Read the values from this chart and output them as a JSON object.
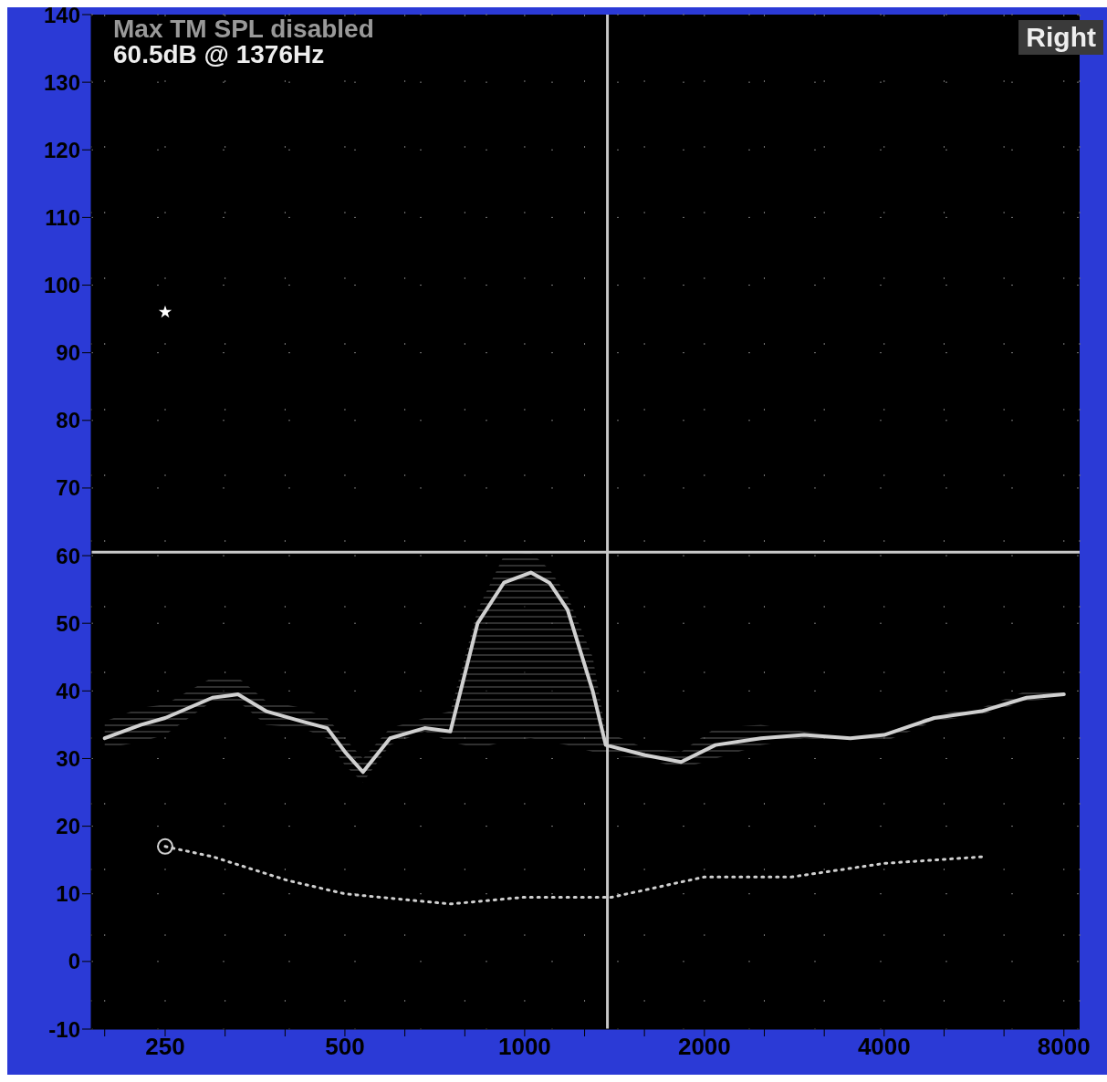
{
  "chart_data": {
    "type": "line",
    "annotations": [
      "Max TM SPL disabled",
      "60.5dB @ 1376Hz",
      "Right"
    ],
    "xlim": [
      188,
      8500
    ],
    "log": "x",
    "xticks": [
      {
        "value": 198,
        "label": null
      },
      250,
      {
        "value": 315,
        "label": null
      },
      {
        "value": 397,
        "label": null
      },
      500,
      {
        "value": 630,
        "label": null
      },
      {
        "value": 794,
        "label": null
      },
      1000,
      {
        "value": 1260,
        "label": null
      },
      {
        "value": 1587,
        "label": null
      },
      2000,
      {
        "value": 2520,
        "label": null
      },
      {
        "value": 3175,
        "label": null
      },
      4000,
      {
        "value": 5040,
        "label": null
      },
      {
        "value": 6350,
        "label": null
      },
      8000
    ],
    "ylim": [
      -10,
      140
    ],
    "yticks": [
      -10,
      0,
      10,
      20,
      30,
      40,
      50,
      60,
      70,
      80,
      90,
      100,
      110,
      120,
      130,
      140
    ],
    "grid": true,
    "ref_lines": [
      {
        "axis": "x",
        "value": 1376,
        "color": "#c8c8c8"
      },
      {
        "axis": "y",
        "value": 60.5,
        "color": "#c8c8c8"
      }
    ],
    "series": [
      {
        "color": "#d0d0d0",
        "marker": "none",
        "line_style": "solid",
        "x": [
          198,
          228,
          250,
          300,
          331,
          369,
          423,
          467,
          500,
          536,
          595,
          680,
          751,
          834,
          923,
          1024,
          1100,
          1180,
          1300,
          1367,
          1591,
          1828,
          2087,
          2487,
          2938,
          3511,
          4000,
          4851,
          5823,
          6929,
          8000
        ],
        "values": [
          33,
          35,
          36,
          39,
          39.5,
          37,
          35.5,
          34.5,
          31,
          28,
          33,
          34.5,
          34,
          50,
          56,
          57.5,
          56,
          52,
          40,
          32,
          30.5,
          29.5,
          32,
          33,
          33.5,
          33,
          33.5,
          36,
          37,
          39,
          39.5
        ],
        "lower": [
          31.5,
          32.5,
          33.5,
          38.5,
          38.5,
          35,
          34.5,
          33,
          29,
          26.5,
          32,
          34,
          32.5,
          31.5,
          32.5,
          33,
          32.5,
          32,
          31,
          30.5,
          30,
          28.5,
          30,
          32,
          33,
          32.5,
          32.5,
          35.5,
          36.5,
          38.5,
          39
        ],
        "upper": [
          35.5,
          37.5,
          38,
          42,
          42,
          38.5,
          37.5,
          36,
          33,
          30,
          34.5,
          36,
          37,
          52,
          60,
          60.5,
          58,
          54,
          45,
          34,
          31.5,
          31,
          34.5,
          35,
          34,
          33.5,
          33.5,
          36.5,
          37.5,
          40,
          40
        ]
      },
      {
        "color": "#d0d0d0",
        "marker": "none",
        "line_style": "dotted",
        "x": [
          250,
          300,
          400,
          500,
          750,
          1000,
          1400,
          2000,
          2800,
          4000,
          5900
        ],
        "values": [
          17,
          15.5,
          12,
          10,
          8.5,
          9.5,
          9.5,
          12.5,
          12.5,
          14.5,
          15.5
        ]
      },
      {
        "type": "scatter",
        "color": "#d0d0d0",
        "marker": "circle",
        "x": [
          250
        ],
        "values": [
          17
        ]
      },
      {
        "type": "scatter",
        "color": "#ffffff",
        "marker": "star",
        "x": [
          250
        ],
        "values": [
          96
        ]
      }
    ]
  }
}
